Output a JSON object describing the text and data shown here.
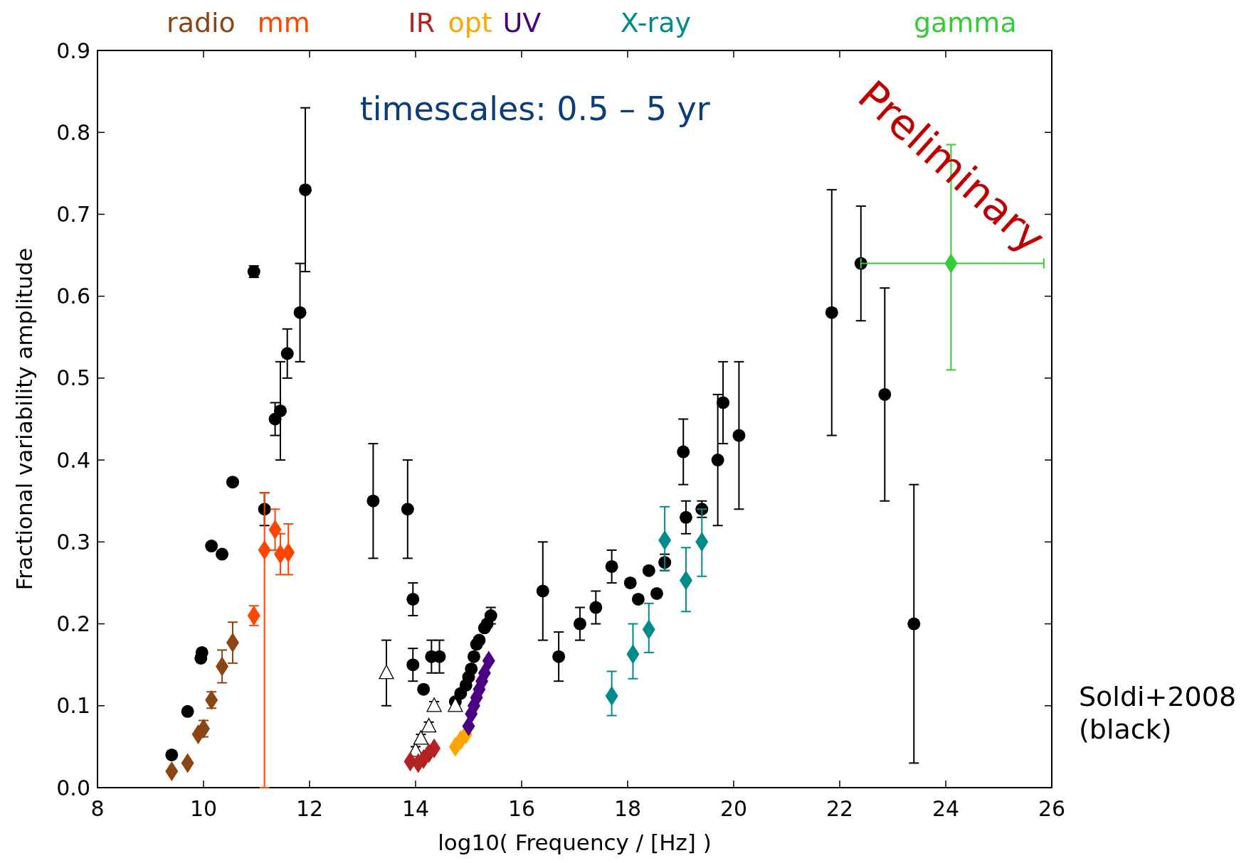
{
  "chart_data": {
    "type": "scatter",
    "xlabel": "log10( Frequency / [Hz] )",
    "ylabel": "Fractional variability amplitude",
    "xlim": [
      8,
      26
    ],
    "xticks": [
      8,
      10,
      12,
      14,
      16,
      18,
      20,
      22,
      24,
      26
    ],
    "ylim": [
      0,
      0.9
    ],
    "yticks": [
      {
        "value": 0,
        "label": "0.0"
      },
      0.1,
      0.2,
      0.3,
      0.4,
      0.5,
      0.6,
      0.7,
      0.8,
      0.9
    ],
    "legend": "right",
    "grid": false,
    "annotations": [
      "timescales: 0.5 – 5 yr",
      "Preliminary"
    ],
    "series": [
      {
        "name": "Soldi+2008 (black)",
        "color": "#000000",
        "marker": "circle",
        "x": [
          9.4,
          9.7,
          9.95,
          9.97,
          10.15,
          10.35,
          10.55,
          10.95,
          11.15,
          11.35,
          11.45,
          11.58,
          11.82,
          11.92,
          13.2,
          13.85,
          13.95,
          13.95,
          14.15,
          14.3,
          14.45,
          14.75,
          14.85,
          14.95,
          15.0,
          15.05,
          15.1,
          15.15,
          15.2,
          15.3,
          15.35,
          15.42,
          16.4,
          16.7,
          17.1,
          17.4,
          17.7,
          18.05,
          18.2,
          18.4,
          18.55,
          18.7,
          19.05,
          19.1,
          19.4,
          19.7,
          19.8,
          20.1,
          21.85,
          22.4,
          22.85,
          23.4
        ],
        "values": [
          0.04,
          0.093,
          0.158,
          0.165,
          0.295,
          0.285,
          0.373,
          0.63,
          0.34,
          0.45,
          0.46,
          0.53,
          0.58,
          0.73,
          0.35,
          0.34,
          0.23,
          0.15,
          0.12,
          0.16,
          0.16,
          0.105,
          0.115,
          0.125,
          0.135,
          0.145,
          0.16,
          0.175,
          0.18,
          0.195,
          0.2,
          0.21,
          0.24,
          0.16,
          0.2,
          0.22,
          0.27,
          0.25,
          0.23,
          0.265,
          0.237,
          0.275,
          0.41,
          0.33,
          0.34,
          0.4,
          0.47,
          0.43,
          0.58,
          0.64,
          0.48,
          0.2
        ],
        "errors": [
          null,
          null,
          null,
          null,
          null,
          null,
          null,
          0.007,
          0.02,
          0.02,
          [
            0.4,
            0.52
          ],
          0.03,
          [
            0.52,
            0.64
          ],
          [
            0.63,
            0.83
          ],
          0.07,
          0.06,
          0.02,
          0.02,
          null,
          0.02,
          0.02,
          null,
          null,
          null,
          null,
          null,
          null,
          null,
          null,
          null,
          null,
          0.01,
          0.06,
          0.03,
          0.02,
          0.02,
          0.02,
          null,
          null,
          null,
          null,
          0.01,
          0.04,
          0.02,
          0.01,
          0.08,
          0.05,
          0.09,
          0.15,
          [
            0.57,
            0.71
          ],
          [
            0.35,
            0.61
          ],
          [
            0.03,
            0.37
          ]
        ]
      },
      {
        "color": "#000000",
        "marker": "triangle",
        "x": [
          13.45,
          14.0,
          14.1,
          14.25,
          14.35,
          14.75
        ],
        "values": [
          0.14,
          0.045,
          0.06,
          0.075,
          0.1,
          0.1
        ],
        "errors": [
          0.04,
          0.005,
          0.005,
          0.005,
          0.005,
          0.005
        ]
      },
      {
        "name": "radio",
        "color": "#8b4513",
        "marker": "diamond",
        "x": [
          9.4,
          9.7,
          9.9,
          10.0,
          10.15,
          10.35,
          10.55
        ],
        "values": [
          0.02,
          0.03,
          0.065,
          0.072,
          0.107,
          0.148,
          0.177
        ],
        "errors": [
          null,
          null,
          null,
          0.01,
          0.01,
          0.02,
          0.025
        ]
      },
      {
        "name": "mm",
        "color": "#ff4500",
        "marker": "diamond",
        "x": [
          10.95,
          11.15,
          11.35,
          11.45,
          11.6
        ],
        "values": [
          0.21,
          0.29,
          0.315,
          0.285,
          0.287
        ],
        "errors": [
          0.012,
          [
            0,
            0.36
          ],
          0.025,
          0.025,
          [
            0.26,
            0.322
          ]
        ]
      },
      {
        "name": "IR",
        "color": "#b22222",
        "marker": "diamond",
        "x": [
          13.9,
          14.05,
          14.15,
          14.25,
          14.35
        ],
        "values": [
          0.032,
          0.03,
          0.035,
          0.042,
          0.048
        ]
      },
      {
        "name": "opt",
        "color": "#ffa500",
        "marker": "diamond",
        "x": [
          14.75,
          14.85,
          14.95
        ],
        "values": [
          0.05,
          0.058,
          0.065
        ]
      },
      {
        "name": "UV",
        "color": "#4b0082",
        "marker": "diamond",
        "x": [
          15.0,
          15.05,
          15.1,
          15.15,
          15.2,
          15.25,
          15.3,
          15.38
        ],
        "values": [
          0.075,
          0.09,
          0.1,
          0.11,
          0.12,
          0.13,
          0.14,
          0.155
        ]
      },
      {
        "name": "X-ray",
        "color": "#008b8b",
        "marker": "diamond",
        "x": [
          17.7,
          18.1,
          18.4,
          18.7,
          19.1,
          19.4
        ],
        "values": [
          0.112,
          0.163,
          0.193,
          0.302,
          0.253,
          0.3
        ],
        "errors": [
          [
            0.088,
            0.142
          ],
          [
            0.133,
            0.2
          ],
          [
            0.165,
            0.225
          ],
          [
            0.265,
            0.343
          ],
          [
            0.215,
            0.293
          ],
          [
            0.258,
            0.34
          ]
        ]
      },
      {
        "name": "gamma",
        "color": "#32cd32",
        "marker": "diamond",
        "x": [
          24.1
        ],
        "values": [
          0.64
        ],
        "errors": [
          [
            0.51,
            0.785
          ]
        ],
        "xerrors": [
          [
            22.4,
            25.85
          ]
        ]
      }
    ]
  }
}
